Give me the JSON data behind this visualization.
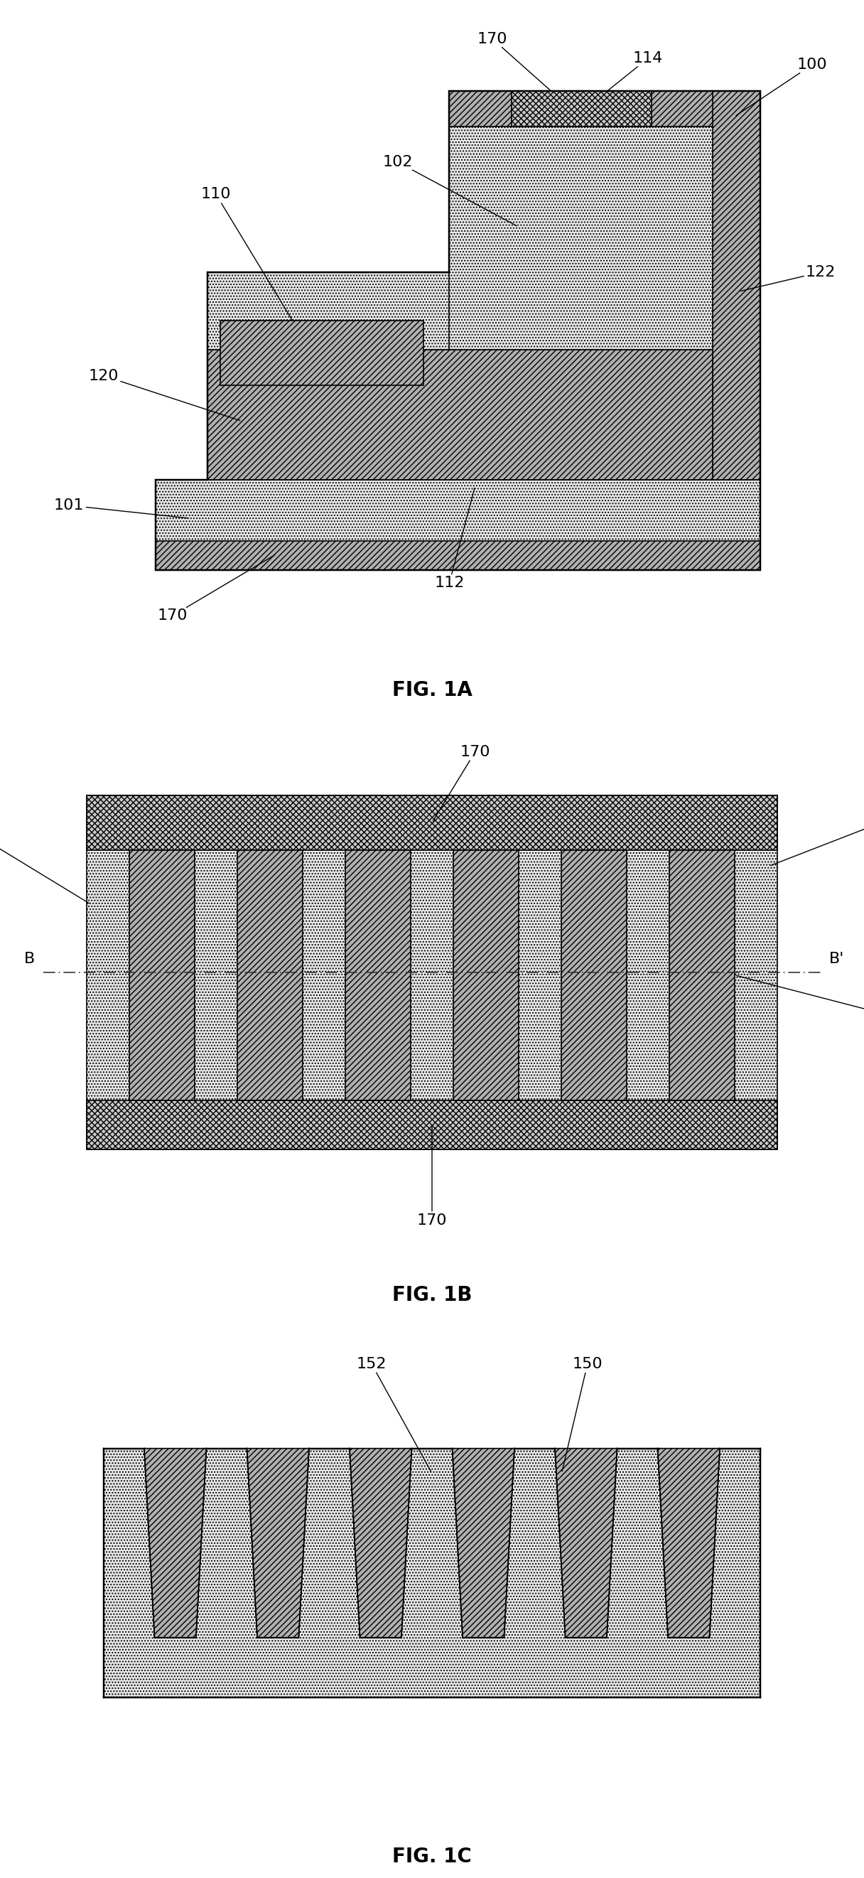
{
  "fig_width": 12.16,
  "fig_height": 26.42,
  "bg_color": "#ffffff",
  "edge_color": "#000000",
  "lw": 1.2,
  "dot_fc": "#e8e8e8",
  "cross_fc": "#c8c8c8",
  "diag_fc": "#b0b0b0",
  "fig1a_label": "FIG. 1A",
  "fig1b_label": "FIG. 1B",
  "fig1c_label": "FIG. 1C",
  "label_fontsize": 18,
  "annot_fontsize": 16,
  "title_fontsize": 20
}
